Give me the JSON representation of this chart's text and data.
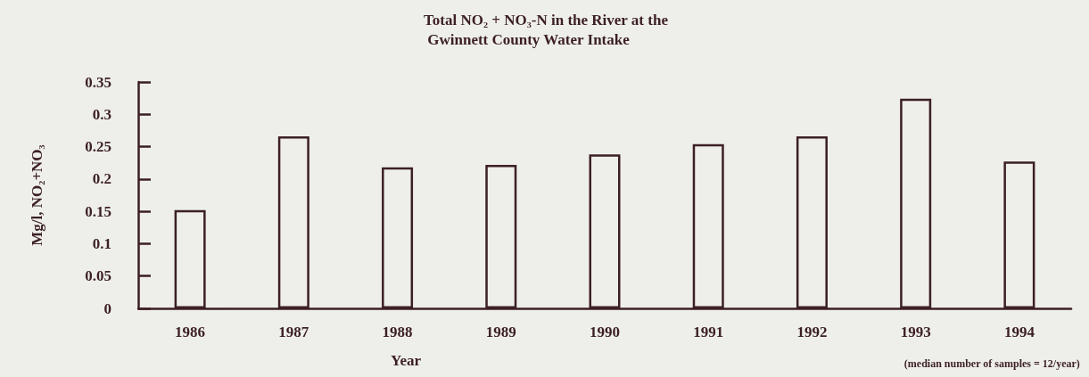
{
  "chart_data": {
    "type": "bar",
    "title": "Total NO₂ + NO₃-N in the River at the Gwinnett County Water Intake",
    "xlabel": "Year",
    "ylabel": "Mg/l, NO₂+NO₃",
    "annotations": [
      "(median number of samples = 12/year)"
    ],
    "categories": [
      "1986",
      "1987",
      "1988",
      "1989",
      "1990",
      "1991",
      "1992",
      "1993",
      "1994"
    ],
    "values": [
      0.152,
      0.266,
      0.218,
      0.222,
      0.238,
      0.254,
      0.266,
      0.324,
      0.227
    ],
    "color": "#3c1f24",
    "ylim": [
      0,
      0.35
    ],
    "yticks": [
      0,
      0.05,
      0.1,
      0.15,
      0.2,
      0.25,
      0.3,
      0.35
    ],
    "grid": false
  }
}
